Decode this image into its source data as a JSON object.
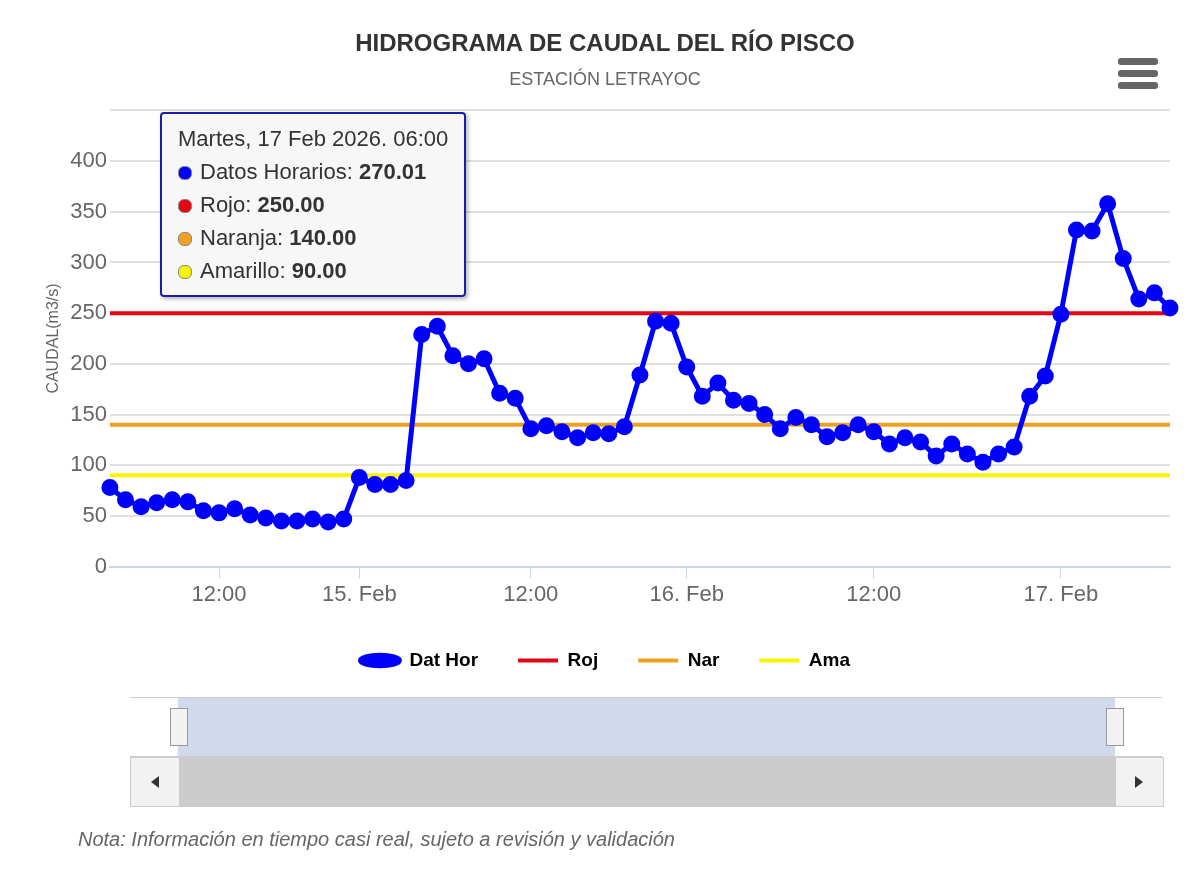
{
  "chart_data": {
    "type": "line",
    "title": "HIDROGRAMA DE CAUDAL DEL RÍO PISCO",
    "subtitle": "ESTACIÓN LETRAYOC",
    "ylabel": "CAUDAL(m3/s)",
    "categories": [
      null,
      null,
      null,
      null,
      null,
      null,
      null,
      "12:00",
      null,
      null,
      null,
      null,
      null,
      null,
      null,
      null,
      "15. Feb",
      null,
      null,
      null,
      null,
      null,
      null,
      null,
      null,
      null,
      null,
      "12:00",
      null,
      null,
      null,
      null,
      null,
      null,
      null,
      null,
      null,
      "16. Feb",
      null,
      null,
      null,
      null,
      null,
      null,
      null,
      null,
      null,
      null,
      null,
      "12:00",
      null,
      null,
      null,
      null,
      null,
      null,
      null,
      null,
      null,
      null,
      null,
      "17. Feb",
      null,
      null,
      null,
      null,
      null,
      null,
      null
    ],
    "series": [
      {
        "name": "Dat Hor",
        "color": "#0000ff",
        "values": [
          78,
          66,
          59,
          63,
          66,
          64,
          55,
          53,
          57,
          51,
          48,
          45,
          45,
          47,
          44,
          47,
          88,
          81,
          81,
          85,
          229,
          237,
          208,
          200,
          205,
          171,
          166,
          136,
          139,
          133,
          127,
          132,
          131,
          138,
          189,
          242,
          240,
          197,
          168,
          181,
          164,
          161,
          150,
          136,
          147,
          140,
          128,
          132,
          140,
          133,
          121,
          127,
          123,
          109,
          121,
          111,
          103,
          111,
          118,
          168,
          188,
          249,
          332,
          331,
          358,
          304,
          264,
          270.01,
          255
        ]
      }
    ],
    "ref_lines": [
      {
        "axis": "y",
        "value": 250,
        "label": "Roj",
        "color": "#e30613"
      },
      {
        "axis": "y",
        "value": 140,
        "label": "Nar",
        "color": "#f0a020"
      },
      {
        "axis": "y",
        "value": 90,
        "label": "Ama",
        "color": "#f5f500"
      }
    ],
    "ylim": [
      0,
      450
    ],
    "yticks": [
      0,
      50,
      100,
      150,
      200,
      250,
      300,
      350,
      400,
      {
        "value": 450,
        "label": null
      }
    ],
    "grid": "y",
    "legend": "bottom",
    "marker": "circle",
    "line_style": "solid",
    "annotations": [
      "Martes, 17 Feb 2026. 06:00",
      "Datos Horarios: 270.01",
      "Rojo: 250.00",
      "Naranja: 140.00",
      "Amarillo: 90.00",
      "Nota: Información en tiempo casi real, sujeto a revisión y validación"
    ]
  }
}
